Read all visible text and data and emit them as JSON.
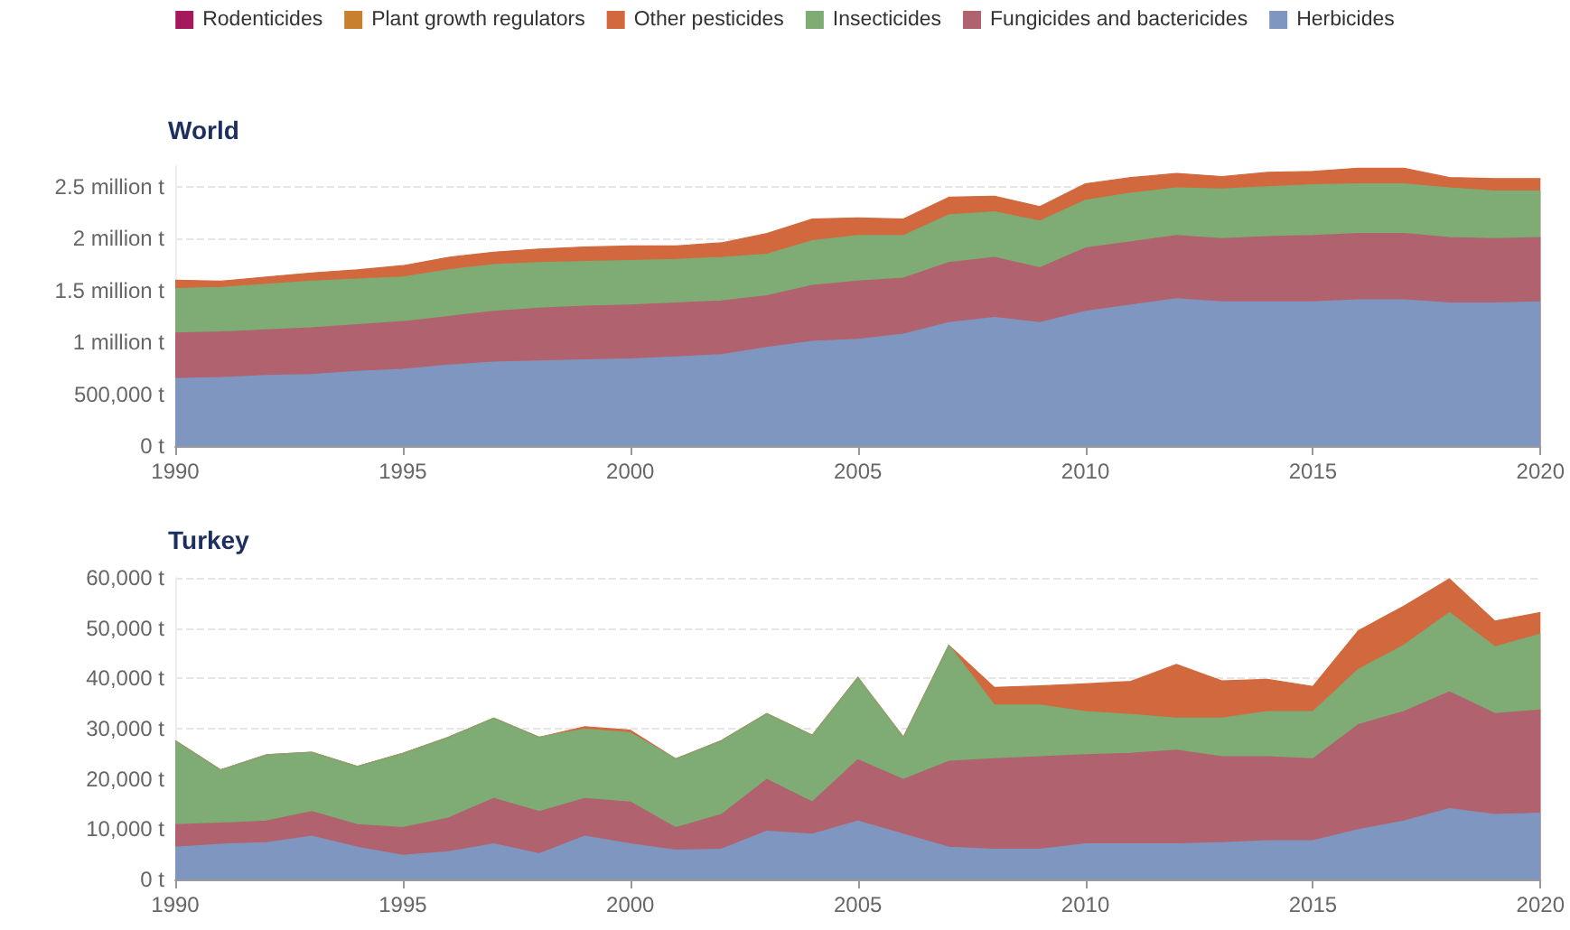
{
  "chart_data": [
    {
      "type": "area",
      "title": "World",
      "stacked": true,
      "grid": "y",
      "legend": "top",
      "marker": "none",
      "x": [
        1990,
        1991,
        1992,
        1993,
        1994,
        1995,
        1996,
        1997,
        1998,
        1999,
        2000,
        2001,
        2002,
        2003,
        2004,
        2005,
        2006,
        2007,
        2008,
        2009,
        2010,
        2011,
        2012,
        2013,
        2014,
        2015,
        2016,
        2017,
        2018,
        2019,
        2020
      ],
      "xlim": [
        1990,
        2020
      ],
      "xticks": [
        1990,
        1995,
        2000,
        2005,
        2010,
        2015,
        2020
      ],
      "ylim": [
        0,
        2700000
      ],
      "yticks": [
        {
          "value": 0,
          "label": "0 t"
        },
        {
          "value": 500000,
          "label": "500,000 t"
        },
        {
          "value": 1000000,
          "label": "1 million t"
        },
        {
          "value": 1500000,
          "label": "1.5 million t"
        },
        {
          "value": 2000000,
          "label": "2 million t"
        },
        {
          "value": 2500000,
          "label": "2.5 million t"
        }
      ],
      "series": [
        {
          "name": "Herbicides",
          "color": "#7f97c0",
          "values": [
            650000,
            660000,
            680000,
            690000,
            720000,
            740000,
            780000,
            810000,
            820000,
            830000,
            840000,
            860000,
            880000,
            950000,
            1010000,
            1030000,
            1080000,
            1190000,
            1240000,
            1190000,
            1300000,
            1360000,
            1420000,
            1390000,
            1390000,
            1390000,
            1410000,
            1410000,
            1380000,
            1380000,
            1390000
          ]
        },
        {
          "name": "Fungicides and bactericides",
          "color": "#b0636e",
          "values": [
            440000,
            440000,
            440000,
            450000,
            450000,
            460000,
            470000,
            490000,
            510000,
            520000,
            520000,
            520000,
            520000,
            500000,
            540000,
            560000,
            540000,
            580000,
            580000,
            530000,
            610000,
            610000,
            610000,
            610000,
            630000,
            640000,
            640000,
            640000,
            630000,
            620000,
            620000
          ]
        },
        {
          "name": "Insecticides",
          "color": "#7fab75",
          "values": [
            430000,
            430000,
            440000,
            450000,
            440000,
            430000,
            450000,
            450000,
            440000,
            430000,
            430000,
            420000,
            420000,
            400000,
            430000,
            440000,
            410000,
            460000,
            440000,
            450000,
            460000,
            470000,
            460000,
            480000,
            480000,
            490000,
            480000,
            480000,
            480000,
            460000,
            450000
          ]
        },
        {
          "name": "Other pesticides",
          "color": "#d2683d",
          "values": [
            80000,
            60000,
            70000,
            80000,
            90000,
            110000,
            120000,
            120000,
            130000,
            140000,
            140000,
            130000,
            140000,
            200000,
            210000,
            170000,
            160000,
            170000,
            150000,
            140000,
            160000,
            150000,
            140000,
            120000,
            140000,
            130000,
            150000,
            150000,
            100000,
            120000,
            120000
          ]
        },
        {
          "name": "Plant growth regulators",
          "color": "#c8802e",
          "values": [
            null,
            null,
            null,
            null,
            null,
            null,
            null,
            null,
            null,
            null,
            null,
            null,
            null,
            null,
            null,
            null,
            null,
            null,
            null,
            null,
            null,
            null,
            null,
            null,
            null,
            null,
            null,
            null,
            null,
            null,
            null
          ]
        },
        {
          "name": "Rodenticides",
          "color": "#a3195b",
          "values": [
            null,
            null,
            null,
            null,
            null,
            null,
            null,
            null,
            null,
            null,
            null,
            null,
            null,
            null,
            null,
            null,
            null,
            null,
            null,
            null,
            null,
            null,
            null,
            null,
            null,
            null,
            null,
            null,
            null,
            null,
            null
          ]
        }
      ]
    },
    {
      "type": "area",
      "title": "Turkey",
      "stacked": true,
      "grid": "y",
      "marker": "none",
      "x": [
        1990,
        1991,
        1992,
        1993,
        1994,
        1995,
        1996,
        1997,
        1998,
        1999,
        2000,
        2001,
        2002,
        2003,
        2004,
        2005,
        2006,
        2007,
        2008,
        2009,
        2010,
        2011,
        2012,
        2013,
        2014,
        2015,
        2016,
        2017,
        2018,
        2019,
        2020
      ],
      "xlim": [
        1990,
        2020
      ],
      "xticks": [
        1990,
        1995,
        2000,
        2005,
        2010,
        2015,
        2020
      ],
      "ylim": [
        0,
        60000
      ],
      "yticks": [
        {
          "value": 0,
          "label": "0 t"
        },
        {
          "value": 10000,
          "label": "10,000 t"
        },
        {
          "value": 20000,
          "label": "20,000 t"
        },
        {
          "value": 30000,
          "label": "30,000 t"
        },
        {
          "value": 40000,
          "label": "40,000 t"
        },
        {
          "value": 50000,
          "label": "50,000 t"
        },
        {
          "value": 60000,
          "label": "60,000 t"
        }
      ],
      "series": [
        {
          "color": "#7f97c0",
          "values": [
            6400,
            7000,
            7300,
            8600,
            6400,
            4800,
            5500,
            7100,
            5100,
            8600,
            7100,
            5800,
            6000,
            9600,
            9000,
            11600,
            9000,
            6400,
            6000,
            6000,
            7100,
            7100,
            7100,
            7300,
            7700,
            7700,
            9900,
            11600,
            14100,
            12900,
            13200
          ]
        },
        {
          "color": "#b0636e",
          "values": [
            4500,
            4200,
            4300,
            4900,
            4500,
            5500,
            6700,
            9000,
            8400,
            7500,
            8300,
            4500,
            6900,
            10300,
            6400,
            12200,
            10900,
            17100,
            18000,
            18400,
            17700,
            18000,
            18600,
            17100,
            16700,
            16300,
            20900,
            21800,
            23200,
            20100,
            20500
          ]
        },
        {
          "color": "#7fab75",
          "values": [
            16700,
            10600,
            13200,
            11800,
            11600,
            14800,
            16100,
            16000,
            14800,
            13800,
            13800,
            13700,
            14700,
            13100,
            13300,
            16400,
            8400,
            23100,
            10700,
            10300,
            8600,
            7700,
            6400,
            7700,
            9000,
            9400,
            11000,
            13200,
            15800,
            13300,
            15100
          ]
        },
        {
          "color": "#d2683d",
          "values": [
            0,
            0,
            0,
            0,
            0,
            0,
            0,
            0,
            0,
            500,
            500,
            0,
            0,
            0,
            0,
            0,
            0,
            0,
            3500,
            3800,
            5500,
            6600,
            10700,
            7400,
            6400,
            5000,
            7700,
            7800,
            6700,
            5100,
            4300
          ]
        },
        {
          "color": "#c8802e",
          "values": [
            null,
            null,
            null,
            null,
            null,
            null,
            null,
            null,
            null,
            null,
            null,
            null,
            null,
            null,
            null,
            null,
            null,
            null,
            null,
            null,
            null,
            null,
            null,
            null,
            null,
            null,
            null,
            null,
            null,
            null,
            null
          ]
        },
        {
          "color": "#a3195b",
          "values": [
            null,
            null,
            null,
            null,
            null,
            null,
            null,
            null,
            null,
            null,
            null,
            null,
            null,
            null,
            null,
            null,
            null,
            null,
            null,
            null,
            null,
            null,
            null,
            null,
            null,
            null,
            null,
            null,
            null,
            null,
            null
          ]
        }
      ]
    }
  ]
}
